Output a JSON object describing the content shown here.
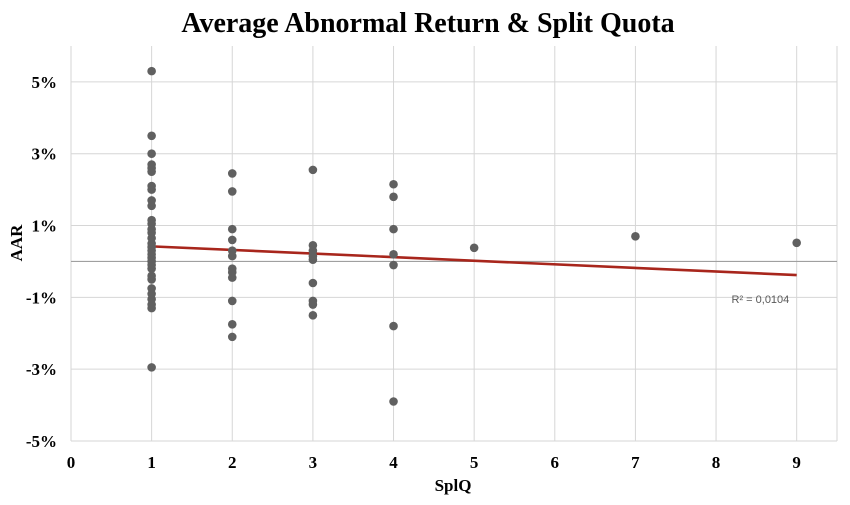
{
  "chart_data": {
    "type": "scatter",
    "title": "Average Abnormal Return & Split Quota",
    "xlabel": "SplQ",
    "ylabel": "AAR",
    "xlim": [
      0,
      9.5
    ],
    "ylim": [
      -5,
      6
    ],
    "x_ticks": [
      0,
      1,
      2,
      3,
      4,
      5,
      6,
      7,
      8,
      9
    ],
    "x_tick_labels": [
      "0",
      "1",
      "2",
      "3",
      "4",
      "5",
      "6",
      "7",
      "8",
      "9"
    ],
    "y_ticks": [
      5,
      3,
      1,
      -1,
      -3,
      -5
    ],
    "y_tick_labels": [
      "5%",
      "3%",
      "1%",
      "-1%",
      "-3%",
      "-5%"
    ],
    "grid": true,
    "point_color": "#606060",
    "trendline_color": "#a8261c",
    "points": [
      {
        "x": 1,
        "y": 5.3
      },
      {
        "x": 1,
        "y": 3.5
      },
      {
        "x": 1,
        "y": 3.0
      },
      {
        "x": 1,
        "y": 2.7
      },
      {
        "x": 1,
        "y": 2.6
      },
      {
        "x": 1,
        "y": 2.5
      },
      {
        "x": 1,
        "y": 2.1
      },
      {
        "x": 1,
        "y": 2.0
      },
      {
        "x": 1,
        "y": 1.7
      },
      {
        "x": 1,
        "y": 1.55
      },
      {
        "x": 1,
        "y": 1.15
      },
      {
        "x": 1,
        "y": 1.05
      },
      {
        "x": 1,
        "y": 0.9
      },
      {
        "x": 1,
        "y": 0.8
      },
      {
        "x": 1,
        "y": 0.65
      },
      {
        "x": 1,
        "y": 0.5
      },
      {
        "x": 1,
        "y": 0.4
      },
      {
        "x": 1,
        "y": 0.3
      },
      {
        "x": 1,
        "y": 0.2
      },
      {
        "x": 1,
        "y": 0.1
      },
      {
        "x": 1,
        "y": 0.0
      },
      {
        "x": 1,
        "y": -0.1
      },
      {
        "x": 1,
        "y": -0.2
      },
      {
        "x": 1,
        "y": -0.4
      },
      {
        "x": 1,
        "y": -0.5
      },
      {
        "x": 1,
        "y": -0.75
      },
      {
        "x": 1,
        "y": -0.9
      },
      {
        "x": 1,
        "y": -1.05
      },
      {
        "x": 1,
        "y": -1.2
      },
      {
        "x": 1,
        "y": -1.3
      },
      {
        "x": 1,
        "y": -2.95
      },
      {
        "x": 2,
        "y": 2.45
      },
      {
        "x": 2,
        "y": 1.95
      },
      {
        "x": 2,
        "y": 0.9
      },
      {
        "x": 2,
        "y": 0.6
      },
      {
        "x": 2,
        "y": 0.3
      },
      {
        "x": 2,
        "y": 0.15
      },
      {
        "x": 2,
        "y": -0.2
      },
      {
        "x": 2,
        "y": -0.3
      },
      {
        "x": 2,
        "y": -0.45
      },
      {
        "x": 2,
        "y": -1.1
      },
      {
        "x": 2,
        "y": -1.75
      },
      {
        "x": 2,
        "y": -2.1
      },
      {
        "x": 3,
        "y": 2.55
      },
      {
        "x": 3,
        "y": 0.45
      },
      {
        "x": 3,
        "y": 0.3
      },
      {
        "x": 3,
        "y": 0.15
      },
      {
        "x": 3,
        "y": 0.05
      },
      {
        "x": 3,
        "y": -0.6
      },
      {
        "x": 3,
        "y": -1.1
      },
      {
        "x": 3,
        "y": -1.2
      },
      {
        "x": 3,
        "y": -1.5
      },
      {
        "x": 4,
        "y": 2.15
      },
      {
        "x": 4,
        "y": 1.8
      },
      {
        "x": 4,
        "y": 0.9
      },
      {
        "x": 4,
        "y": 0.2
      },
      {
        "x": 4,
        "y": -0.1
      },
      {
        "x": 4,
        "y": -1.8
      },
      {
        "x": 4,
        "y": -3.9
      },
      {
        "x": 5,
        "y": 0.38
      },
      {
        "x": 7,
        "y": 0.7
      },
      {
        "x": 9,
        "y": 0.52
      }
    ],
    "trendline": {
      "type": "linear",
      "x": [
        1,
        9
      ],
      "y": [
        0.42,
        -0.38
      ],
      "label": "R² = 0,0104",
      "label_at": {
        "x": 8.55,
        "y": -1.15
      }
    }
  }
}
